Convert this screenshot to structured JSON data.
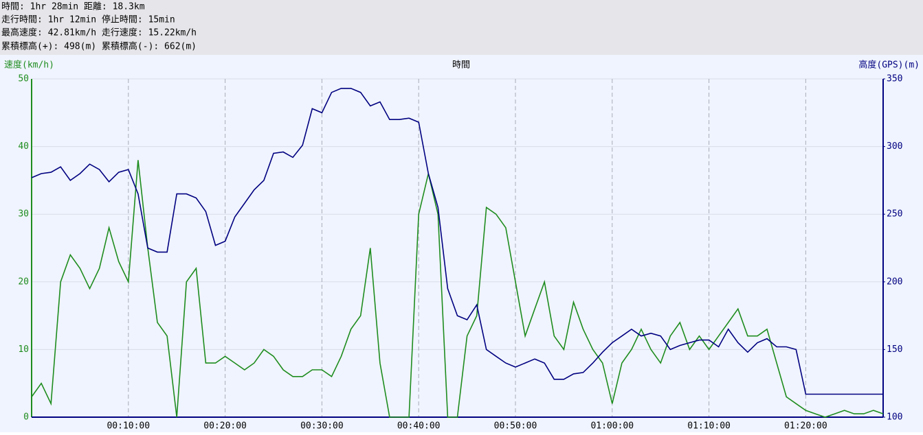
{
  "chart_data": {
    "type": "line",
    "annotations": [
      "時間: 1hr 28min 距離: 18.3km",
      "走行時間: 1hr 12min 停止時間: 15min",
      "最高速度: 42.81km/h 走行速度: 15.22km/h",
      "累積標高(+): 498(m) 累積標高(-): 662(m)"
    ],
    "xlabel": "時間",
    "ylabel": "速度(km/h)",
    "y2label": "高度(GPS)(m)",
    "x": [
      0,
      1,
      2,
      3,
      4,
      5,
      6,
      7,
      8,
      9,
      10,
      11,
      12,
      13,
      14,
      15,
      16,
      17,
      18,
      19,
      20,
      21,
      22,
      23,
      24,
      25,
      26,
      27,
      28,
      29,
      30,
      31,
      32,
      33,
      34,
      35,
      36,
      37,
      38,
      39,
      40,
      41,
      42,
      43,
      44,
      45,
      46,
      47,
      48,
      49,
      50,
      51,
      52,
      53,
      54,
      55,
      56,
      57,
      58,
      59,
      60,
      61,
      62,
      63,
      64,
      65,
      66,
      67,
      68,
      69,
      70,
      71,
      72,
      73,
      74,
      75,
      76,
      77,
      78,
      79,
      80,
      81,
      82,
      83,
      84,
      85,
      86,
      87,
      88
    ],
    "series": [
      {
        "name": "速度(km/h)",
        "color": "#1e8c1e",
        "axis": "y",
        "values": [
          3,
          5,
          2,
          20,
          24,
          22,
          19,
          22,
          28,
          23,
          20,
          38,
          25,
          14,
          12,
          0,
          20,
          22,
          8,
          8,
          9,
          8,
          7,
          8,
          10,
          9,
          7,
          6,
          6,
          7,
          7,
          6,
          9,
          13,
          15,
          25,
          8,
          0,
          0,
          0,
          30,
          36,
          30,
          0,
          0,
          12,
          15,
          31,
          30,
          28,
          20,
          12,
          16,
          20,
          12,
          10,
          17,
          13,
          10,
          8,
          2,
          8,
          10,
          13,
          10,
          8,
          12,
          14,
          10,
          12,
          10,
          12,
          14,
          16,
          12,
          12,
          13,
          8,
          3,
          2,
          1,
          0.5,
          0,
          0.5,
          1,
          0.5,
          0.5,
          1,
          0.5
        ]
      },
      {
        "name": "高度(GPS)(m)",
        "color": "#000080",
        "axis": "y2",
        "values": [
          277,
          280,
          281,
          285,
          275,
          280,
          287,
          283,
          274,
          281,
          283,
          265,
          225,
          222,
          222,
          265,
          265,
          262,
          252,
          227,
          230,
          248,
          258,
          268,
          275,
          295,
          296,
          292,
          301,
          328,
          325,
          340,
          343,
          343,
          340,
          330,
          333,
          320,
          320,
          321,
          318,
          280,
          255,
          195,
          175,
          172,
          183,
          150,
          145,
          140,
          137,
          140,
          143,
          140,
          128,
          128,
          132,
          133,
          140,
          148,
          155,
          160,
          165,
          160,
          162,
          160,
          150,
          153,
          155,
          157,
          157,
          152,
          165,
          155,
          148,
          155,
          158,
          152,
          152,
          150,
          117,
          117,
          117,
          117,
          117,
          117,
          117,
          117,
          117
        ]
      }
    ],
    "xlim": [
      0,
      88
    ],
    "xticks": [
      {
        "value": 10,
        "label": "00:10:00"
      },
      {
        "value": 20,
        "label": "00:20:00"
      },
      {
        "value": 30,
        "label": "00:30:00"
      },
      {
        "value": 40,
        "label": "00:40:00"
      },
      {
        "value": 50,
        "label": "00:50:00"
      },
      {
        "value": 60,
        "label": "01:00:00"
      },
      {
        "value": 70,
        "label": "01:10:00"
      },
      {
        "value": 80,
        "label": "01:20:00"
      }
    ],
    "ylim": [
      0,
      50
    ],
    "yticks": [
      0,
      10,
      20,
      30,
      40,
      50
    ],
    "y2lim": [
      100,
      350
    ],
    "y2ticks": [
      100,
      150,
      200,
      250,
      300,
      350
    ],
    "grid": true
  }
}
